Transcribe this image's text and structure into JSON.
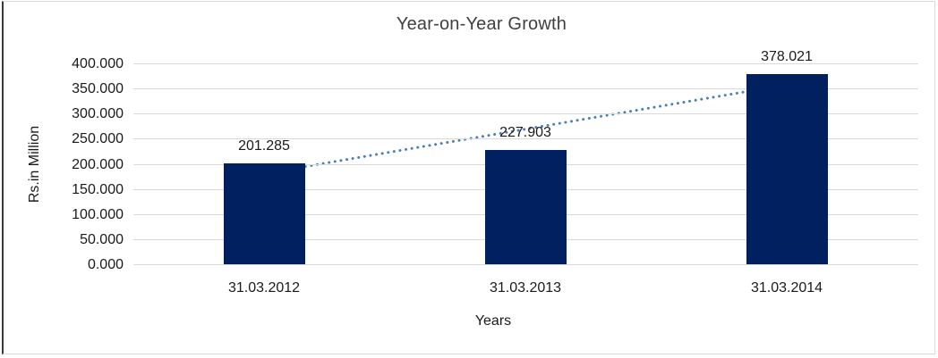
{
  "chart_data": {
    "type": "bar",
    "title": "Year-on-Year Growth",
    "categories": [
      "31.03.2012",
      "31.03.2013",
      "31.03.2014"
    ],
    "values": [
      201.285,
      227.903,
      378.021
    ],
    "data_labels": [
      "201.285",
      "227.903",
      "378.021"
    ],
    "xlabel": "Years",
    "ylabel": "Rs.in Million",
    "ylim": [
      0,
      400
    ],
    "ytick_step": 50,
    "yticks": [
      "400.000",
      "350.000",
      "300.000",
      "250.000",
      "200.000",
      "150.000",
      "100.000",
      "50.000",
      "0.000"
    ],
    "grid": true,
    "legend": "none",
    "trendline": {
      "type": "linear",
      "style": "dotted",
      "color": "#4a7ebb"
    },
    "bar_color": "#002060",
    "gridline_color": "#d9d9d9",
    "title_color": "#404040",
    "text_color": "#1a1a1a",
    "frame_border_color": "#d9d9d9"
  }
}
